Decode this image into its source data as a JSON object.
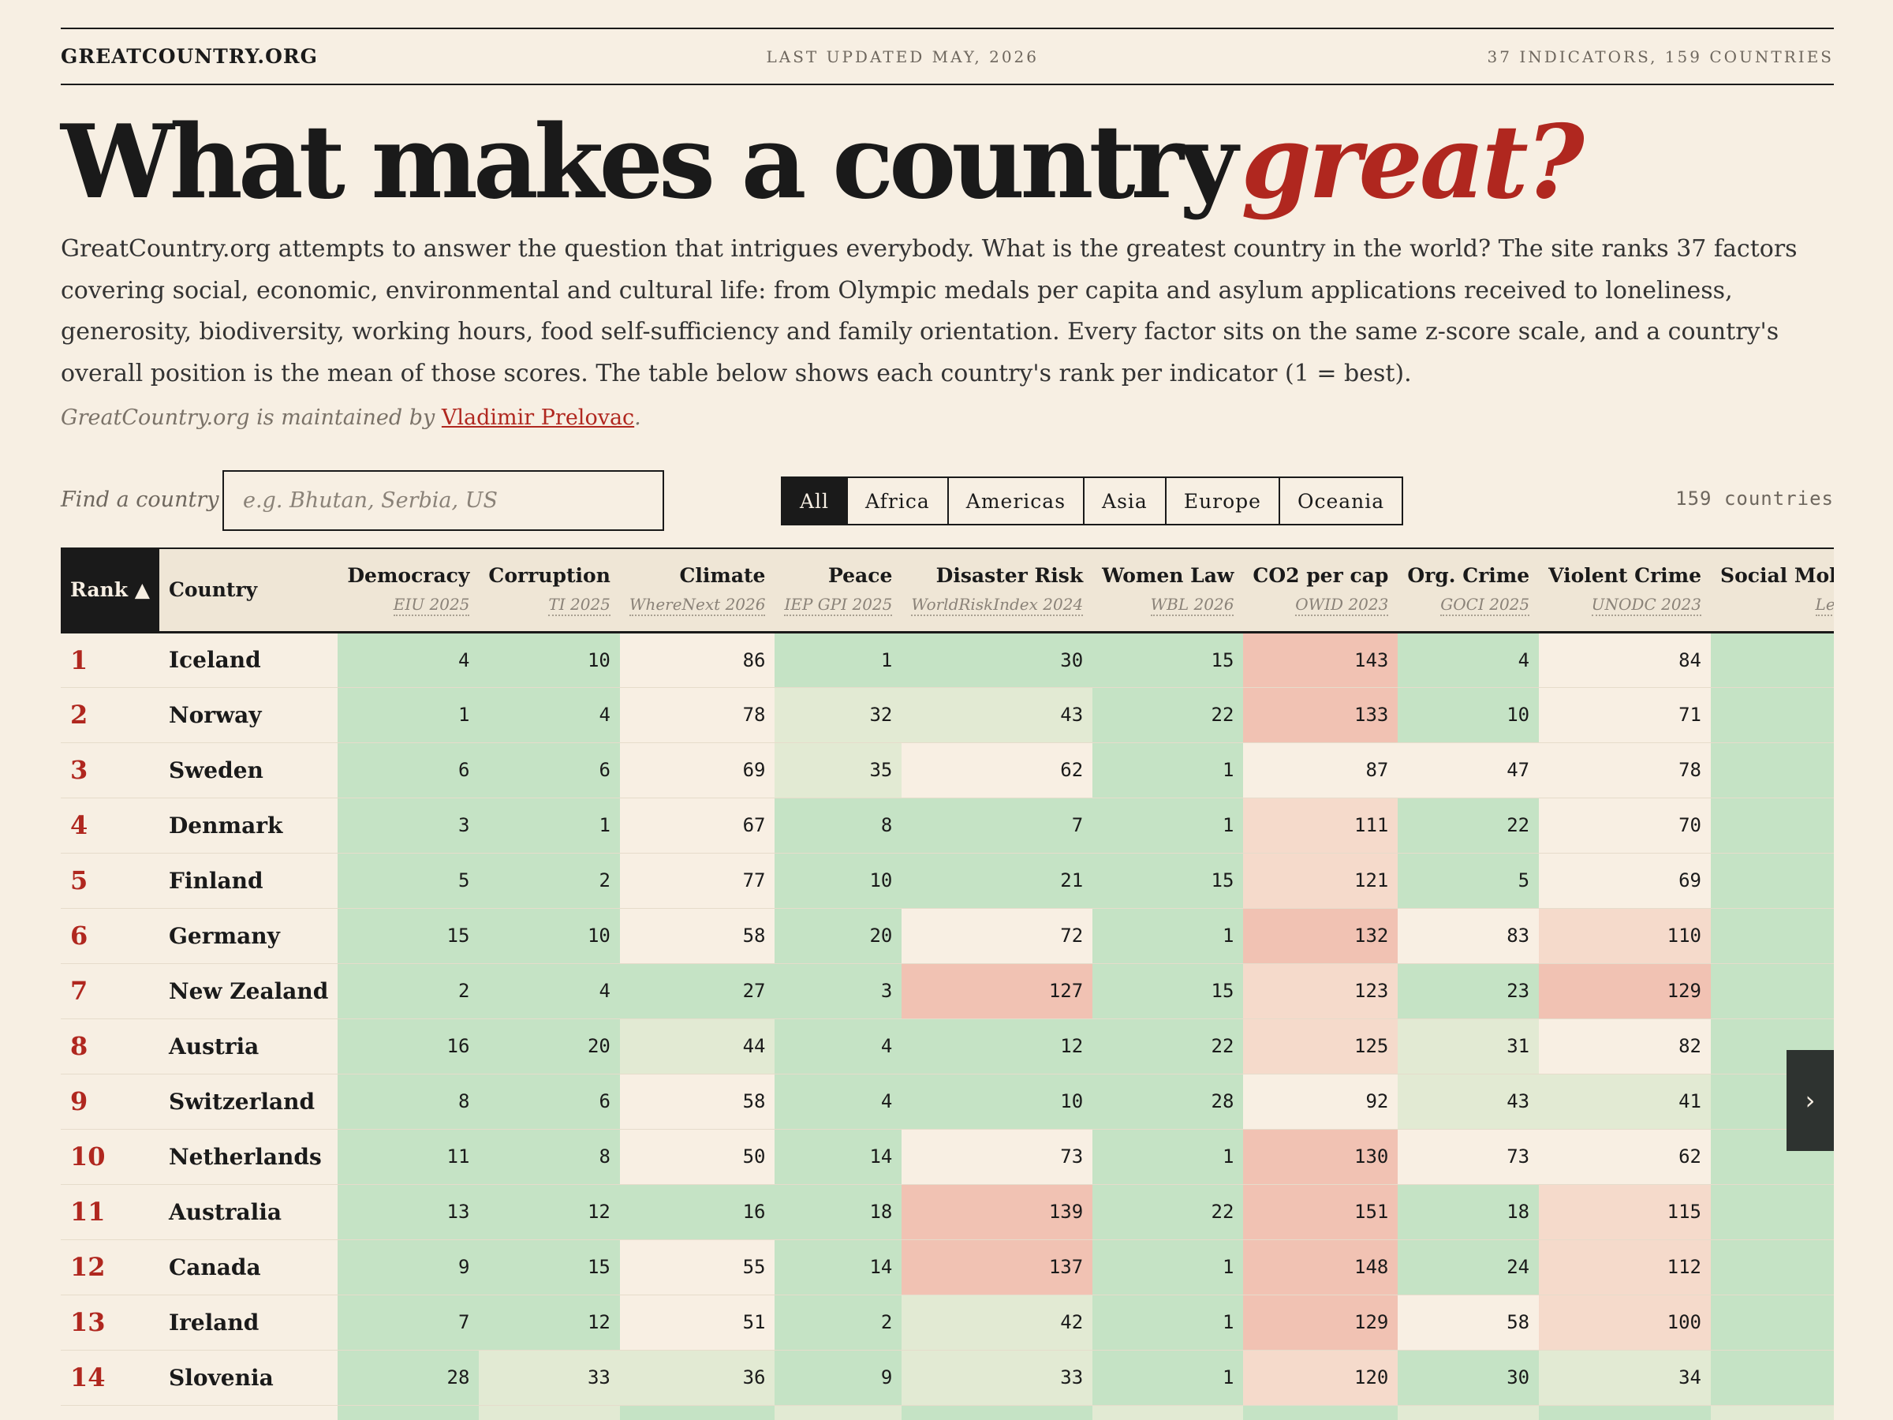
{
  "header": {
    "brand": "GREATCOUNTRY.ORG",
    "updated": "LAST UPDATED MAY, 2026",
    "stats": "37 INDICATORS, 159 COUNTRIES"
  },
  "headline": {
    "main": "What makes a country",
    "accent": "great?"
  },
  "intro": "GreatCountry.org attempts to answer the question that intrigues everybody. What is the greatest country in the world? The site ranks 37 factors covering social, economic, environmental and cultural life: from Olympic medals per capita and asylum applications received to loneliness, generosity, biodiversity, working hours, food self-sufficiency and family orientation. Every factor sits on the same z-score scale, and a country's overall position is the mean of those scores. The table below shows each country's rank per indicator (1 = best).",
  "credit": {
    "prefix": "GreatCountry.org is maintained by",
    "author": "Vladimir Prelovac",
    "suffix": "."
  },
  "search": {
    "label": "Find a country",
    "placeholder": "e.g. Bhutan, Serbia, US",
    "value": ""
  },
  "filters": [
    {
      "label": "All",
      "active": true
    },
    {
      "label": "Africa",
      "active": false
    },
    {
      "label": "Americas",
      "active": false
    },
    {
      "label": "Asia",
      "active": false
    },
    {
      "label": "Europe",
      "active": false
    },
    {
      "label": "Oceania",
      "active": false
    }
  ],
  "count_text": "159 countries",
  "table": {
    "rank_header": "Rank ▲",
    "country_header": "Country",
    "indicators": [
      {
        "name": "Democracy",
        "source": "EIU 2025"
      },
      {
        "name": "Corruption",
        "source": "TI 2025"
      },
      {
        "name": "Climate",
        "source": "WhereNext 2026"
      },
      {
        "name": "Peace",
        "source": "IEP GPI 2025"
      },
      {
        "name": "Disaster Risk",
        "source": "WorldRiskIndex 2024"
      },
      {
        "name": "Women Law",
        "source": "WBL 2026"
      },
      {
        "name": "CO2 per cap",
        "source": "OWID 2023"
      },
      {
        "name": "Org. Crime",
        "source": "GOCI 2025"
      },
      {
        "name": "Violent Crime",
        "source": "UNODC 2023"
      },
      {
        "name": "Social Mobility",
        "source": "Legatum"
      }
    ],
    "rows": [
      {
        "rank": "1",
        "country": "Iceland",
        "values": [
          4,
          10,
          86,
          1,
          30,
          15,
          143,
          4,
          84,
          null
        ]
      },
      {
        "rank": "2",
        "country": "Norway",
        "values": [
          1,
          4,
          78,
          32,
          43,
          22,
          133,
          10,
          71,
          null
        ]
      },
      {
        "rank": "3",
        "country": "Sweden",
        "values": [
          6,
          6,
          69,
          35,
          62,
          1,
          87,
          47,
          78,
          null
        ]
      },
      {
        "rank": "4",
        "country": "Denmark",
        "values": [
          3,
          1,
          67,
          8,
          7,
          1,
          111,
          22,
          70,
          null
        ]
      },
      {
        "rank": "5",
        "country": "Finland",
        "values": [
          5,
          2,
          77,
          10,
          21,
          15,
          121,
          5,
          69,
          null
        ]
      },
      {
        "rank": "6",
        "country": "Germany",
        "values": [
          15,
          10,
          58,
          20,
          72,
          1,
          132,
          83,
          110,
          null
        ]
      },
      {
        "rank": "7",
        "country": "New Zealand",
        "values": [
          2,
          4,
          27,
          3,
          127,
          15,
          123,
          23,
          129,
          null
        ]
      },
      {
        "rank": "8",
        "country": "Austria",
        "values": [
          16,
          20,
          44,
          4,
          12,
          22,
          125,
          31,
          82,
          null
        ]
      },
      {
        "rank": "9",
        "country": "Switzerland",
        "values": [
          8,
          6,
          58,
          4,
          10,
          28,
          92,
          43,
          41,
          null
        ]
      },
      {
        "rank": "10",
        "country": "Netherlands",
        "values": [
          11,
          8,
          50,
          14,
          73,
          1,
          130,
          73,
          62,
          null
        ]
      },
      {
        "rank": "11",
        "country": "Australia",
        "values": [
          13,
          12,
          16,
          18,
          139,
          22,
          151,
          18,
          115,
          null
        ]
      },
      {
        "rank": "12",
        "country": "Canada",
        "values": [
          9,
          15,
          55,
          14,
          137,
          1,
          148,
          24,
          112,
          null
        ]
      },
      {
        "rank": "13",
        "country": "Ireland",
        "values": [
          7,
          12,
          51,
          2,
          42,
          1,
          129,
          58,
          100,
          null
        ]
      },
      {
        "rank": "14",
        "country": "Slovenia",
        "values": [
          28,
          33,
          36,
          9,
          33,
          1,
          120,
          30,
          34,
          null
        ]
      },
      {
        "rank": "",
        "country": "",
        "values": [
          null,
          null,
          null,
          null,
          null,
          null,
          null,
          null,
          null,
          null
        ]
      }
    ]
  },
  "colors": {
    "best": "#c5e3c5",
    "good": "#e2ead3",
    "neutral": "#f8efe3",
    "bad": "#f5dacb",
    "worst": "#f1c2b3"
  },
  "scroll_next_icon": "chevron-right-icon"
}
